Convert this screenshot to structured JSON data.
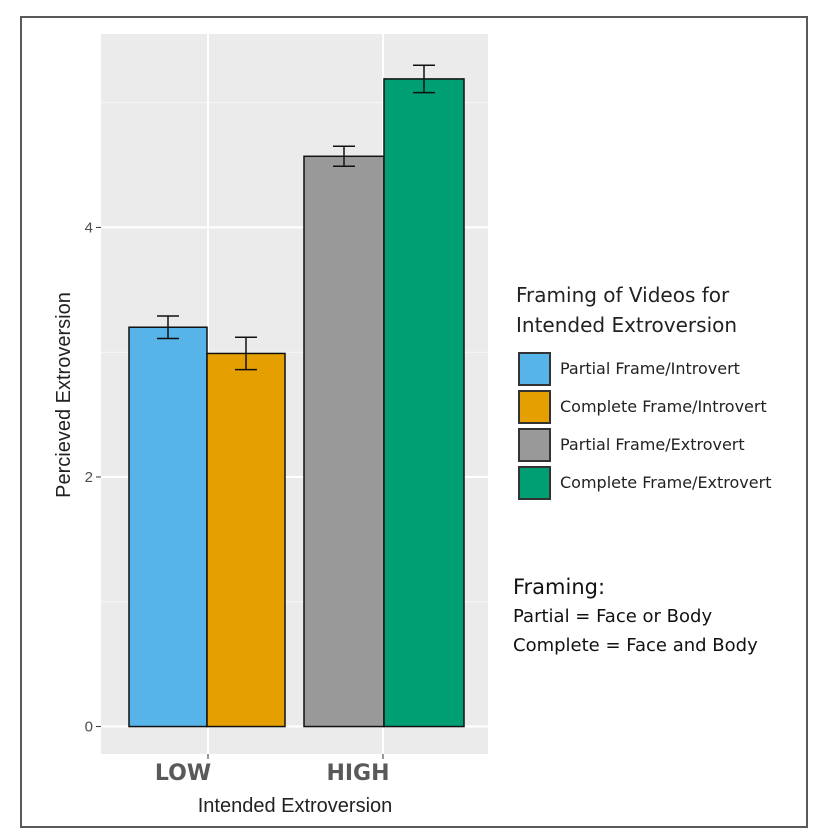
{
  "chart_data": {
    "type": "bar",
    "categories": [
      "LOW",
      "HIGH"
    ],
    "xlabel": "Intended Extroversion",
    "ylabel": "Percieved Extroversion",
    "ylim": [
      -0.22,
      5.55
    ],
    "yticks": [
      0,
      2,
      4
    ],
    "grid": true,
    "legend_position": "right",
    "legend_title": "Framing of Videos for Intended Extroversion",
    "series": [
      {
        "name": "Partial Frame/Introvert",
        "category": "LOW",
        "value": 3.2,
        "err": [
          3.11,
          3.29
        ],
        "color": "#56b4e9"
      },
      {
        "name": "Complete Frame/Introvert",
        "category": "LOW",
        "value": 2.99,
        "err": [
          2.86,
          3.12
        ],
        "color": "#e69f00"
      },
      {
        "name": "Partial Frame/Extrovert",
        "category": "HIGH",
        "value": 4.57,
        "err": [
          4.49,
          4.65
        ],
        "color": "#999999"
      },
      {
        "name": "Complete Frame/Extrovert",
        "category": "HIGH",
        "value": 5.19,
        "err": [
          5.08,
          5.3
        ],
        "color": "#009e73"
      }
    ]
  },
  "note": {
    "title": "Framing:",
    "lines": [
      "Partial = Face or Body",
      "Complete = Face and Body"
    ]
  }
}
